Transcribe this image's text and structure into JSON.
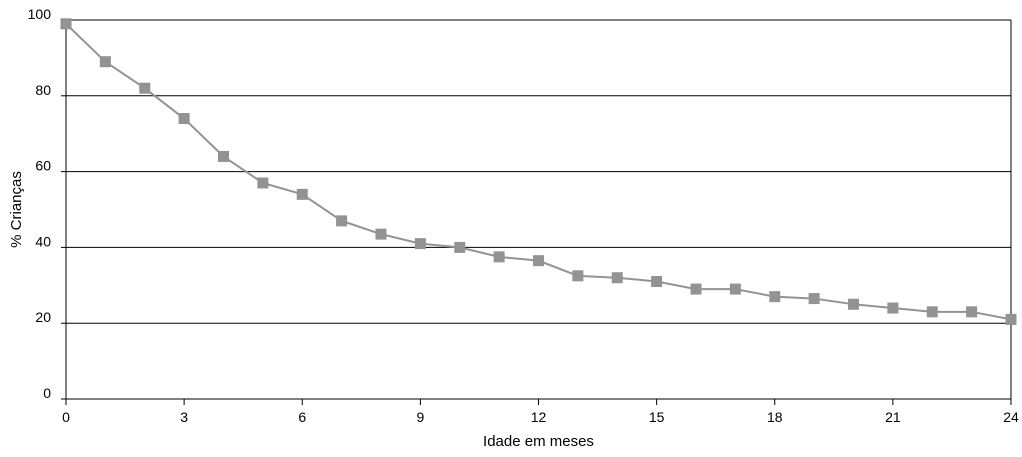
{
  "chart_data": {
    "type": "line",
    "title": "",
    "xlabel": "Idade em meses",
    "ylabel": "% Crianças",
    "xlim": [
      0,
      24
    ],
    "ylim": [
      0,
      100
    ],
    "x_ticks": [
      0,
      3,
      6,
      9,
      12,
      15,
      18,
      21,
      24
    ],
    "y_ticks": [
      0,
      20,
      40,
      60,
      80,
      100
    ],
    "grid": "horizontal",
    "legend": "none",
    "series": [
      {
        "color": "#939393",
        "marker": "square",
        "x": [
          0,
          1,
          2,
          3,
          4,
          5,
          6,
          7,
          8,
          9,
          10,
          11,
          12,
          13,
          14,
          15,
          16,
          17,
          18,
          19,
          20,
          21,
          22,
          23,
          24
        ],
        "y": [
          99,
          89,
          82,
          74,
          64,
          57,
          54,
          47,
          43.5,
          41,
          40,
          37.5,
          36.5,
          32.5,
          32,
          31,
          29,
          29,
          27,
          26.5,
          25,
          24,
          23,
          23,
          21
        ]
      }
    ]
  }
}
